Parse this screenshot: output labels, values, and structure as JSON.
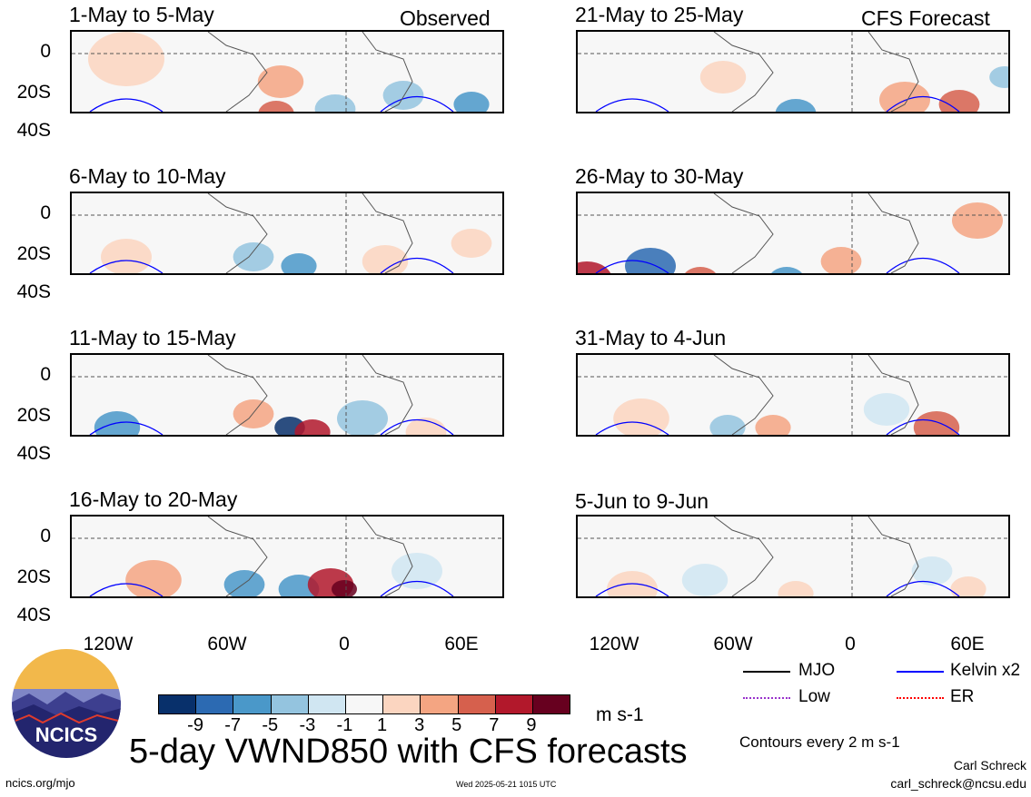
{
  "panels": [
    {
      "title": "1-May to 5-May",
      "label": "Observed"
    },
    {
      "title": "6-May to 10-May",
      "label": ""
    },
    {
      "title": "11-May to 15-May",
      "label": ""
    },
    {
      "title": "16-May to 20-May",
      "label": ""
    },
    {
      "title": "21-May to 25-May",
      "label": "CFS Forecast"
    },
    {
      "title": "26-May to 30-May",
      "label": ""
    },
    {
      "title": "31-May to 4-Jun",
      "label": ""
    },
    {
      "title": "5-Jun to 9-Jun",
      "label": ""
    }
  ],
  "y_ticks": [
    "0",
    "20S",
    "40S"
  ],
  "x_ticks": [
    "120W",
    "60W",
    "0",
    "60E"
  ],
  "colorbar": {
    "colors": [
      "#08306b",
      "#2c6ab2",
      "#4a98c9",
      "#94c4df",
      "#d0e6f2",
      "#f7f7f7",
      "#fbd5c0",
      "#f4a582",
      "#d6604d",
      "#b2182b",
      "#67001f"
    ],
    "labels": [
      "-9",
      "-7",
      "-5",
      "-3",
      "-1",
      "1",
      "3",
      "5",
      "7",
      "9"
    ],
    "units": "m s-1"
  },
  "legend": {
    "mjo": "MJO",
    "low": "Low",
    "kelvin": "Kelvin x2",
    "er": "ER",
    "mjo_color": "#000000",
    "low_color": "#9932cc",
    "kelvin_color": "#0000ff",
    "er_color": "#ff0000"
  },
  "contour_note": "Contours every 2 m s-1",
  "main_title": "5-day VWND850 with CFS forecasts",
  "logo_text": "NCICS",
  "site": "ncics.org/mjo",
  "timestamp": "Wed 2025-05-21 1015 UTC",
  "author": "Carl Schreck",
  "email": "carl_schreck@ncsu.edu"
}
